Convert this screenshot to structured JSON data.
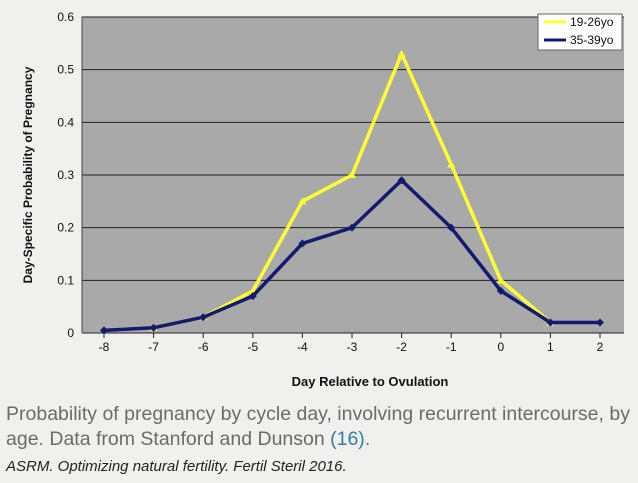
{
  "chart_data": {
    "type": "line",
    "title": "",
    "xlabel": "Day Relative to Ovulation",
    "ylabel": "Day-Specific Probability of Pregnancy",
    "x": [
      -8,
      -7,
      -6,
      -5,
      -4,
      -3,
      -2,
      -1,
      0,
      1,
      2
    ],
    "x_tick_labels": [
      "-8",
      "-7",
      "-6",
      "-5",
      "-4",
      "-3",
      "-2",
      "-1",
      "0",
      "1",
      "2"
    ],
    "ylim": [
      0,
      0.6
    ],
    "y_ticks": [
      0,
      0.1,
      0.2,
      0.3,
      0.4,
      0.5,
      0.6
    ],
    "y_tick_labels": [
      "0",
      "0.1",
      "0.2",
      "0.3",
      "0.4",
      "0.5",
      "0.6"
    ],
    "grid": "horizontal",
    "legend_position": "top-right",
    "series": [
      {
        "name": "19-26yo",
        "color": "#ffff33",
        "x": [
          -7,
          -6,
          -5,
          -4,
          -3,
          -2,
          -1,
          0,
          1
        ],
        "values": [
          0.01,
          0.03,
          0.08,
          0.25,
          0.3,
          0.53,
          0.32,
          0.1,
          0.02
        ]
      },
      {
        "name": "35-39yo",
        "color": "#141a6e",
        "x": [
          -8,
          -7,
          -6,
          -5,
          -4,
          -3,
          -2,
          -1,
          0,
          1,
          2
        ],
        "values": [
          0.005,
          0.01,
          0.03,
          0.07,
          0.17,
          0.2,
          0.29,
          0.2,
          0.08,
          0.02,
          0.02
        ]
      }
    ]
  },
  "caption": {
    "text": "Probability of pregnancy by cycle day, involving recurrent intercourse, by age. Data from Stanford and Dunson ",
    "reference": "(16)",
    "end": "."
  },
  "citation": "ASRM. Optimizing natural fertility. Fertil Steril 2016.",
  "colors": {
    "plot_background": "#a9a9a9",
    "grid": "#222222",
    "page_background": "#f0f0ef"
  }
}
